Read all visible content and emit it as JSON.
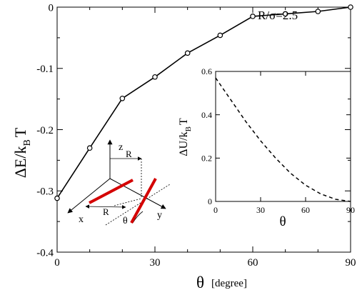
{
  "chart_data": [
    {
      "type": "line",
      "name": "main",
      "annotation": "R/σ=2.5",
      "ylabel": {
        "main": "ΔE/k",
        "sub": "B",
        "tail": "T"
      },
      "xlabel": {
        "main": "θ",
        "unit": "[degree]"
      },
      "xlim": [
        0,
        90
      ],
      "ylim": [
        -0.4,
        0
      ],
      "xticks": [
        0,
        30,
        60,
        90
      ],
      "yticks": [
        0,
        -0.1,
        -0.2,
        -0.3,
        -0.4
      ],
      "ytick_labels": [
        "0",
        "-0.1",
        "-0.2",
        "-0.3",
        "-0.4"
      ],
      "series": [
        {
          "x": [
            0,
            10,
            20,
            30,
            40,
            50,
            60,
            70,
            80,
            90
          ],
          "y": [
            -0.312,
            -0.23,
            -0.149,
            -0.114,
            -0.075,
            -0.046,
            -0.015,
            -0.011,
            -0.007,
            0.0
          ],
          "marker": "open-circle",
          "line": "solid",
          "color": "#000000"
        }
      ]
    },
    {
      "type": "line",
      "name": "inset",
      "ylabel": {
        "main": "ΔU/k",
        "sub": "B",
        "tail": "T"
      },
      "xlabel": {
        "main": "θ"
      },
      "xlim": [
        0,
        90
      ],
      "ylim": [
        0,
        0.6
      ],
      "xticks": [
        0,
        30,
        60,
        90
      ],
      "yticks": [
        0,
        0.2,
        0.4,
        0.6
      ],
      "ytick_labels": [
        "0",
        "0.2",
        "0.4",
        "0.6"
      ],
      "series": [
        {
          "x": [
            0,
            10,
            20,
            30,
            40,
            50,
            60,
            70,
            80,
            90
          ],
          "y": [
            0.57,
            0.47,
            0.37,
            0.28,
            0.2,
            0.13,
            0.075,
            0.035,
            0.01,
            0.0
          ],
          "line": "dashed",
          "color": "#000000"
        }
      ]
    }
  ],
  "diagram": {
    "axis_labels": {
      "x": "x",
      "y": "y",
      "z": "z"
    },
    "distance_label": "R",
    "angle_label": "θ",
    "rod_color": "#d40000"
  }
}
